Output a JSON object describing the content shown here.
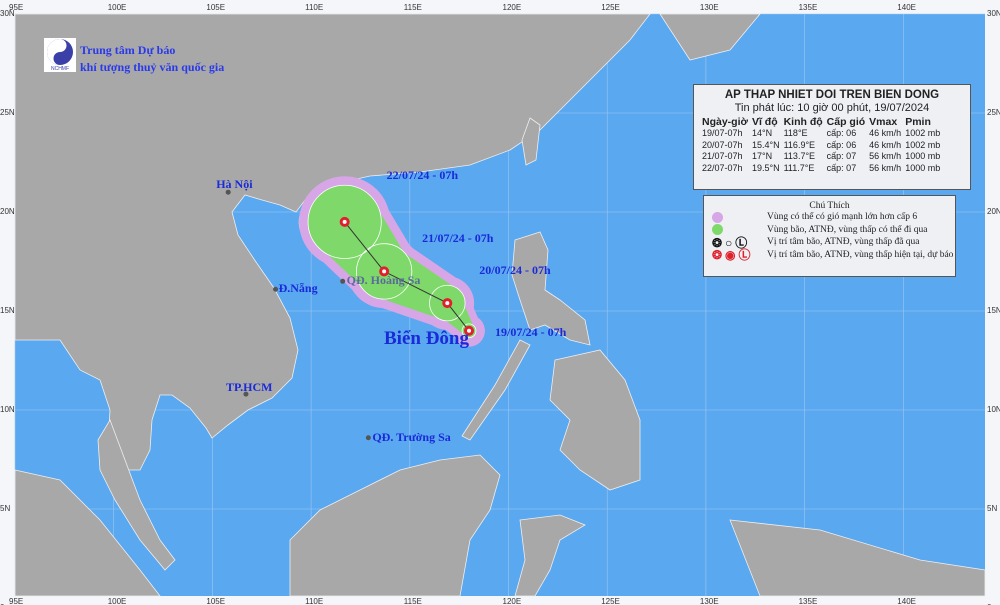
{
  "org": {
    "line1": "Trung tâm Dự báo",
    "line2": "khí tượng thuỷ văn quốc gia",
    "logo_text": "NCHMF"
  },
  "axes": {
    "lon_labels": [
      "95E",
      "100E",
      "105E",
      "110E",
      "115E",
      "120E",
      "125E",
      "130E",
      "135E",
      "140E"
    ],
    "lat_labels": [
      "30N",
      "25N",
      "20N",
      "15N",
      "10N",
      "5N",
      "0"
    ]
  },
  "info": {
    "title": "AP THAP NHIET DOI TREN BIEN DONG",
    "issued": "Tin phát lúc: 10 giờ 00 phút, 19/07/2024",
    "headers": [
      "Ngày-giờ",
      "Vĩ độ",
      "Kinh độ",
      "Cấp gió",
      "Vmax",
      "Pmin"
    ],
    "rows": [
      [
        "19/07-07h",
        "14°N",
        "118°E",
        "cấp: 06",
        "46 km/h",
        "1002 mb"
      ],
      [
        "20/07-07h",
        "15.4°N",
        "116.9°E",
        "cấp: 06",
        "46 km/h",
        "1002 mb"
      ],
      [
        "21/07-07h",
        "17°N",
        "113.7°E",
        "cấp: 07",
        "56 km/h",
        "1000 mb"
      ],
      [
        "22/07-07h",
        "19.5°N",
        "111.7°E",
        "cấp: 07",
        "56 km/h",
        "1000 mb"
      ]
    ]
  },
  "legend": {
    "title": "Chú Thích",
    "items": [
      {
        "text": "Vùng có thể có gió mạnh lớn hơn cấp 6",
        "color": "#d7a6e6"
      },
      {
        "text": "Vùng bão, ATNĐ, vùng thấp có thể đi qua",
        "color": "#7ed96a"
      },
      {
        "text": "Vị trí tâm bão, ATNĐ, vùng thấp đã qua",
        "color": "#111111"
      },
      {
        "text": "Vị trí tâm bão, ATNĐ, vùng thấp hiện tại, dự báo",
        "color": "#e0202a"
      }
    ]
  },
  "track": [
    {
      "label": "19/07/24 - 07h",
      "lat": 14,
      "lon": 118,
      "radius_deg": 0.35
    },
    {
      "label": "20/07/24 - 07h",
      "lat": 15.4,
      "lon": 116.9,
      "radius_deg": 0.9
    },
    {
      "label": "21/07/24 - 07h",
      "lat": 17,
      "lon": 113.7,
      "radius_deg": 1.4
    },
    {
      "label": "22/07/24 - 07h",
      "lat": 19.5,
      "lon": 111.7,
      "radius_deg": 1.85
    }
  ],
  "places": [
    {
      "name": "Hà Nội",
      "lat": 21.0,
      "lon": 105.8
    },
    {
      "name": "Đ.Nẵng",
      "lat": 16.1,
      "lon": 108.2
    },
    {
      "name": "QĐ. Hoàng Sa",
      "lat": 16.5,
      "lon": 111.6
    },
    {
      "name": "TP.HCM",
      "lat": 10.8,
      "lon": 106.7
    },
    {
      "name": "QĐ. Trường Sa",
      "lat": 8.6,
      "lon": 112.9
    }
  ],
  "sea_label": "Biển Đông",
  "colors": {
    "sea": "#5aa8f0",
    "land": "#a8a8a8",
    "cone": "#7ed96a",
    "wind_zone": "#d7a6e6",
    "center": "#e0202a"
  }
}
